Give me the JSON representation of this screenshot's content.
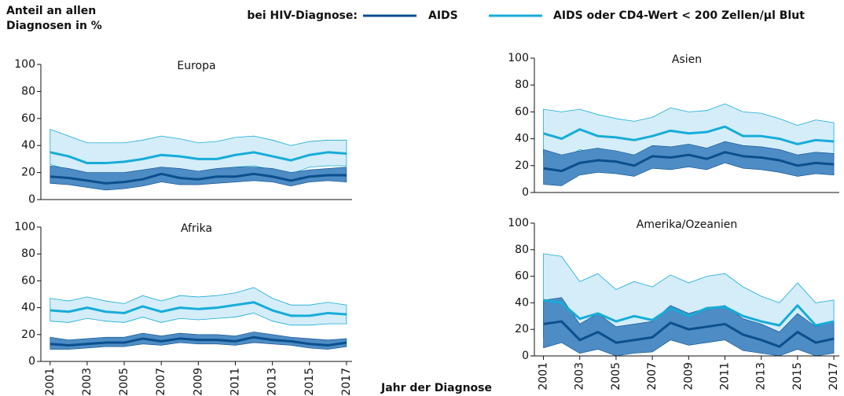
{
  "ylabel": [
    "Anteil an allen",
    "Diagnosen in %"
  ],
  "xlabel": "Jahr der Diagnose",
  "legend": {
    "title": "bei HIV-Diagnose:",
    "items": [
      {
        "name": "AIDS",
        "color": "#0b4f8e"
      },
      {
        "name": "AIDS oder CD4-Wert < 200 Zellen/µl Blut",
        "color": "#17acd8"
      }
    ]
  },
  "chart_data": [
    {
      "type": "line-band",
      "title": "Europa",
      "x": [
        2001,
        2002,
        2003,
        2004,
        2005,
        2006,
        2007,
        2008,
        2009,
        2010,
        2011,
        2012,
        2013,
        2014,
        2015,
        2016,
        2017
      ],
      "xlim": [
        2000.5,
        2017.3
      ],
      "ylim": [
        0,
        100
      ],
      "yticks": [
        0,
        20,
        40,
        60,
        80,
        100
      ],
      "series": [
        {
          "values": [
            17,
            16,
            14,
            12,
            13,
            15,
            19,
            16,
            15,
            17,
            17,
            19,
            17,
            14,
            17,
            18,
            18
          ],
          "lower": [
            12,
            11,
            9,
            7,
            8,
            10,
            13,
            11,
            11,
            12,
            13,
            14,
            13,
            10,
            13,
            14,
            13
          ],
          "upper": [
            25,
            23,
            20,
            20,
            20,
            22,
            24,
            23,
            21,
            23,
            24,
            24,
            23,
            20,
            22,
            23,
            24
          ]
        },
        {
          "values": [
            35,
            32,
            27,
            27,
            28,
            30,
            33,
            32,
            30,
            30,
            33,
            35,
            32,
            29,
            33,
            35,
            34
          ],
          "lower": [
            26,
            22,
            18,
            18,
            18,
            20,
            22,
            21,
            20,
            22,
            24,
            25,
            22,
            19,
            24,
            25,
            25
          ],
          "upper": [
            52,
            47,
            42,
            42,
            42,
            44,
            47,
            45,
            42,
            43,
            46,
            47,
            44,
            40,
            43,
            44,
            44
          ]
        }
      ]
    },
    {
      "type": "line-band",
      "title": "Asien",
      "x": [
        2001,
        2002,
        2003,
        2004,
        2005,
        2006,
        2007,
        2008,
        2009,
        2010,
        2011,
        2012,
        2013,
        2014,
        2015,
        2016,
        2017
      ],
      "xlim": [
        2000.5,
        2017.3
      ],
      "ylim": [
        0,
        100
      ],
      "yticks": [
        0,
        20,
        40,
        60,
        80,
        100
      ],
      "series": [
        {
          "values": [
            18,
            16,
            22,
            24,
            23,
            20,
            27,
            26,
            28,
            25,
            30,
            27,
            26,
            24,
            20,
            22,
            21
          ],
          "lower": [
            6,
            5,
            13,
            15,
            14,
            12,
            18,
            17,
            19,
            17,
            22,
            18,
            17,
            15,
            12,
            14,
            13
          ],
          "upper": [
            32,
            28,
            31,
            33,
            31,
            28,
            35,
            34,
            36,
            33,
            38,
            35,
            34,
            32,
            28,
            30,
            29
          ]
        },
        {
          "values": [
            44,
            40,
            47,
            42,
            41,
            39,
            42,
            46,
            44,
            45,
            49,
            42,
            42,
            40,
            36,
            39,
            38
          ],
          "lower": [
            28,
            24,
            32,
            28,
            28,
            26,
            30,
            30,
            29,
            31,
            36,
            27,
            28,
            26,
            24,
            26,
            25
          ],
          "upper": [
            62,
            60,
            62,
            58,
            55,
            53,
            56,
            63,
            60,
            61,
            66,
            60,
            59,
            55,
            50,
            54,
            52
          ]
        }
      ]
    },
    {
      "type": "line-band",
      "title": "Afrika",
      "x": [
        2001,
        2002,
        2003,
        2004,
        2005,
        2006,
        2007,
        2008,
        2009,
        2010,
        2011,
        2012,
        2013,
        2014,
        2015,
        2016,
        2017
      ],
      "xlim": [
        2000.5,
        2017.3
      ],
      "ylim": [
        0,
        100
      ],
      "yticks": [
        0,
        20,
        40,
        60,
        80,
        100
      ],
      "xticks": [
        2001,
        2003,
        2005,
        2007,
        2009,
        2011,
        2013,
        2015,
        2017
      ],
      "series": [
        {
          "values": [
            13,
            12,
            13,
            14,
            14,
            17,
            15,
            17,
            16,
            16,
            15,
            18,
            16,
            15,
            13,
            12,
            14
          ],
          "lower": [
            9,
            9,
            10,
            11,
            11,
            13,
            12,
            14,
            13,
            13,
            12,
            14,
            13,
            12,
            10,
            9,
            11
          ],
          "upper": [
            18,
            16,
            17,
            18,
            18,
            21,
            19,
            21,
            20,
            20,
            19,
            22,
            20,
            18,
            17,
            16,
            17
          ]
        },
        {
          "values": [
            38,
            37,
            40,
            37,
            36,
            41,
            37,
            40,
            39,
            40,
            42,
            44,
            38,
            34,
            34,
            36,
            35
          ],
          "lower": [
            30,
            29,
            32,
            30,
            29,
            33,
            29,
            32,
            31,
            32,
            33,
            36,
            30,
            27,
            27,
            28,
            28
          ],
          "upper": [
            47,
            45,
            48,
            45,
            43,
            49,
            45,
            49,
            48,
            49,
            51,
            55,
            47,
            42,
            42,
            44,
            42
          ]
        }
      ]
    },
    {
      "type": "line-band",
      "title": "Amerika/Ozeanien",
      "x": [
        2001,
        2002,
        2003,
        2004,
        2005,
        2006,
        2007,
        2008,
        2009,
        2010,
        2011,
        2012,
        2013,
        2014,
        2015,
        2016,
        2017
      ],
      "xlim": [
        2000.5,
        2017.3
      ],
      "ylim": [
        0,
        100
      ],
      "yticks": [
        0,
        20,
        40,
        60,
        80,
        100
      ],
      "xticks": [
        2001,
        2003,
        2005,
        2007,
        2009,
        2011,
        2013,
        2015,
        2017
      ],
      "series": [
        {
          "values": [
            24,
            26,
            12,
            18,
            10,
            12,
            14,
            25,
            20,
            22,
            24,
            16,
            12,
            7,
            18,
            10,
            13
          ],
          "lower": [
            6,
            10,
            2,
            5,
            0,
            2,
            3,
            12,
            8,
            10,
            12,
            4,
            2,
            0,
            5,
            0,
            2
          ],
          "upper": [
            42,
            44,
            24,
            32,
            22,
            24,
            26,
            38,
            32,
            36,
            38,
            28,
            24,
            18,
            32,
            22,
            26
          ]
        },
        {
          "values": [
            42,
            40,
            28,
            32,
            26,
            30,
            27,
            36,
            30,
            36,
            37,
            30,
            26,
            23,
            38,
            23,
            26
          ],
          "lower": [
            14,
            14,
            8,
            12,
            6,
            10,
            8,
            16,
            12,
            16,
            16,
            10,
            8,
            6,
            20,
            6,
            10
          ],
          "upper": [
            77,
            75,
            56,
            62,
            50,
            56,
            52,
            61,
            55,
            60,
            62,
            52,
            45,
            40,
            55,
            40,
            42
          ]
        }
      ]
    }
  ]
}
